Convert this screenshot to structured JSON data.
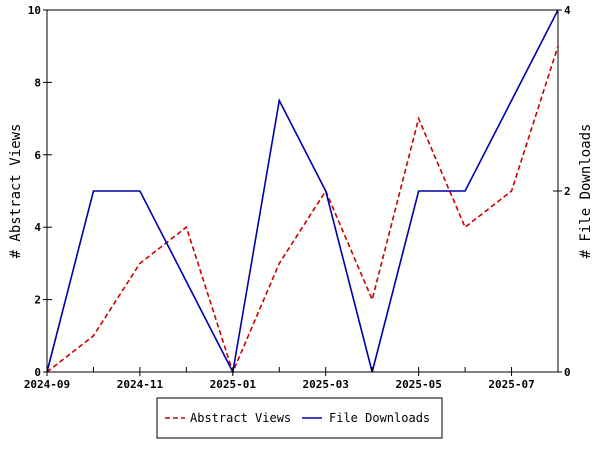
{
  "chart_data": {
    "type": "line",
    "x": [
      "2024-09",
      "2024-10",
      "2024-11",
      "2024-12",
      "2025-01",
      "2025-02",
      "2025-03",
      "2025-04",
      "2025-05",
      "2025-06",
      "2025-07",
      "2025-08"
    ],
    "x_tick_labels": [
      "2024-09",
      "2024-11",
      "2025-01",
      "2025-03",
      "2025-05",
      "2025-07"
    ],
    "ylabel": "# Abstract Views",
    "y2label": "# File Downloads",
    "ylim": [
      0,
      10
    ],
    "y2lim": [
      0,
      4
    ],
    "y_ticks": [
      0,
      2,
      4,
      6,
      8,
      10
    ],
    "y2_ticks": [
      0,
      2,
      4
    ],
    "grid": false,
    "legend_position": "bottom",
    "series": [
      {
        "name": "Abstract Views",
        "axis": "left",
        "color": "#cc0000",
        "style": "dashed",
        "values": [
          0,
          1,
          3,
          4,
          0,
          3,
          5,
          2,
          7,
          4,
          5,
          9
        ]
      },
      {
        "name": "File Downloads",
        "axis": "right",
        "color": "#0000aa",
        "style": "solid",
        "values": [
          0,
          2,
          2,
          1,
          0,
          3,
          2,
          0,
          2,
          2,
          3,
          4
        ]
      }
    ]
  }
}
